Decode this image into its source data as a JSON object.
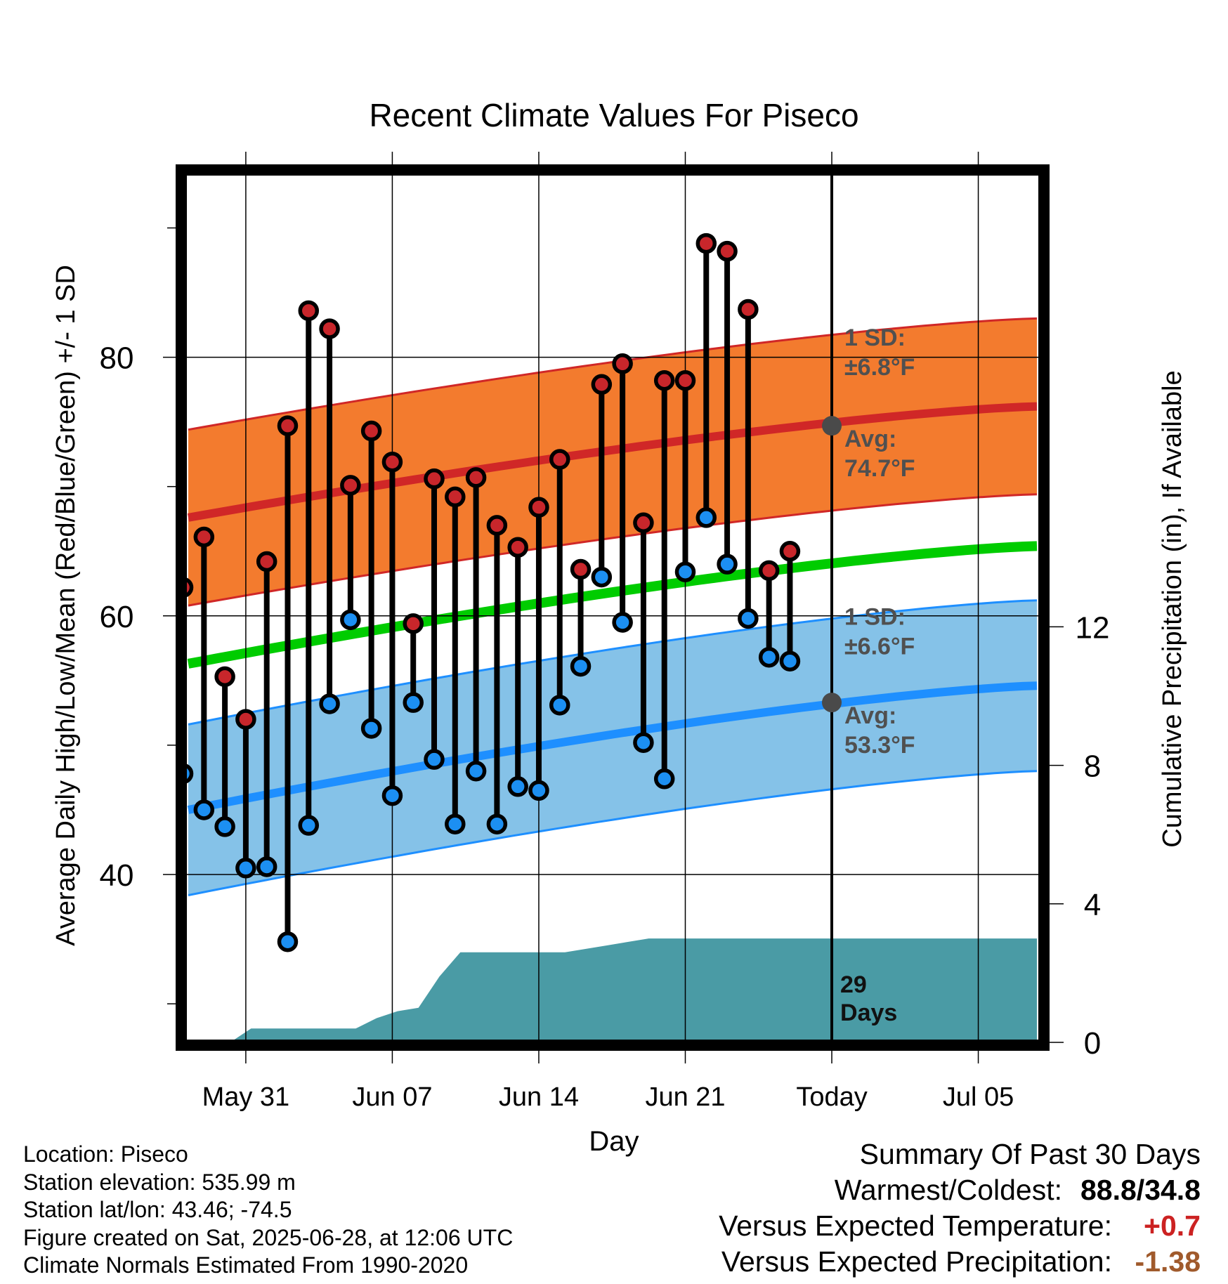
{
  "chart_data": {
    "type": "climate-range",
    "title": "Recent Climate Values For Piseco",
    "xlabel": "Day",
    "ylabel": "Average Daily High/Low/Mean (Red/Blue/Green) +/- 1 SD",
    "y2label": "Cumulative Precipitation (in), If Available",
    "ylim": [
      27,
      93
    ],
    "y2lim": [
      0,
      20
    ],
    "x_tick_labels": [
      "May 31",
      "Jun 07",
      "Jun 14",
      "Jun 21",
      "Today",
      "Jul 05"
    ],
    "y_ticks": [
      "40",
      "60",
      "80"
    ],
    "y_minor_ticks": [
      30,
      50,
      70,
      90
    ],
    "y2_ticks": [
      "0",
      "4",
      "8",
      "12"
    ],
    "grid": true,
    "days": [
      1,
      2,
      3,
      4,
      5,
      6,
      7,
      8,
      9,
      10,
      11,
      12,
      13,
      14,
      15,
      16,
      17,
      18,
      19,
      20,
      21,
      22,
      23,
      24,
      25,
      26,
      27,
      28,
      29
    ],
    "daily_high": [
      62.2,
      66.1,
      55.3,
      52.0,
      64.2,
      74.7,
      83.6,
      82.2,
      70.1,
      74.3,
      71.9,
      59.4,
      70.6,
      69.2,
      70.7,
      67.0,
      65.3,
      68.4,
      72.1,
      63.6,
      77.9,
      79.5,
      67.2,
      78.2,
      78.2,
      88.8,
      88.2,
      83.7,
      63.5
    ],
    "daily_low": [
      47.8,
      45.0,
      43.7,
      40.5,
      40.6,
      34.8,
      43.8,
      53.2,
      59.7,
      51.3,
      46.1,
      53.3,
      48.9,
      43.9,
      48.0,
      43.9,
      46.8,
      46.5,
      53.1,
      56.1,
      63.0,
      59.5,
      50.2,
      47.4,
      63.4,
      67.6,
      64.0,
      59.8,
      56.8
    ],
    "extra_points": [
      {
        "day": 30,
        "high": 65.0,
        "low": 56.5
      }
    ],
    "normal_high": {
      "start": 67.6,
      "end": 76.2,
      "today": 74.7,
      "sd": 6.8
    },
    "normal_low": {
      "start": 45.0,
      "end": 54.6,
      "today": 53.3,
      "sd": 6.6
    },
    "normal_mean": {
      "start": 56.3,
      "end": 65.4
    },
    "cumulative_precip": [
      0.0,
      0.0,
      0.0,
      0.4,
      0.4,
      0.4,
      0.4,
      0.4,
      0.4,
      0.7,
      0.9,
      1.0,
      1.9,
      2.6,
      2.6,
      2.6,
      2.6,
      2.6,
      2.6,
      2.7,
      2.8,
      2.9,
      3.0,
      3.0,
      3.0,
      3.0,
      3.0,
      3.0,
      3.0,
      3.0,
      3.0,
      3.0,
      3.0,
      3.0,
      3.0,
      3.0,
      3.0,
      3.0,
      3.0,
      3.0,
      3.0,
      3.0
    ],
    "precip_days_label": "29",
    "precip_days_unit": "Days",
    "annotations": {
      "high_sd_label": "1 SD:",
      "high_sd_value": "±6.8°F",
      "high_avg_label": "Avg:",
      "high_avg_value": "74.7°F",
      "low_sd_label": "1 SD:",
      "low_sd_value": "±6.6°F",
      "low_avg_label": "Avg:",
      "low_avg_value": "53.3°F"
    },
    "colors": {
      "high_band": "#f37b2e",
      "high_line": "#d02727",
      "low_band": "#85c2e8",
      "low_line": "#1e8fff",
      "mean_line": "#00cc00",
      "precip": "#4a9ba5",
      "high_dot": "#c8262b",
      "low_dot": "#1c8ff2",
      "annotation_text": "#505050"
    }
  },
  "info": {
    "location": "Location: Piseco",
    "elevation": "Station elevation: 535.99 m",
    "latlon": "Station lat/lon: 43.46; -74.5",
    "created": "Figure created on Sat, 2025-06-28, at 12:06 UTC",
    "normals": "Climate Normals Estimated From 1990-2020"
  },
  "summary": {
    "title": "Summary Of Past 30 Days",
    "warm_cold_label": "Warmest/Coldest:",
    "warm_cold_value": "88.8/34.8",
    "temp_label": "Versus Expected Temperature:",
    "temp_value": "+0.7",
    "temp_color": "#cc2222",
    "precip_label": "Versus Expected Precipitation:",
    "precip_value": "-1.38",
    "precip_color": "#a05a2c"
  }
}
